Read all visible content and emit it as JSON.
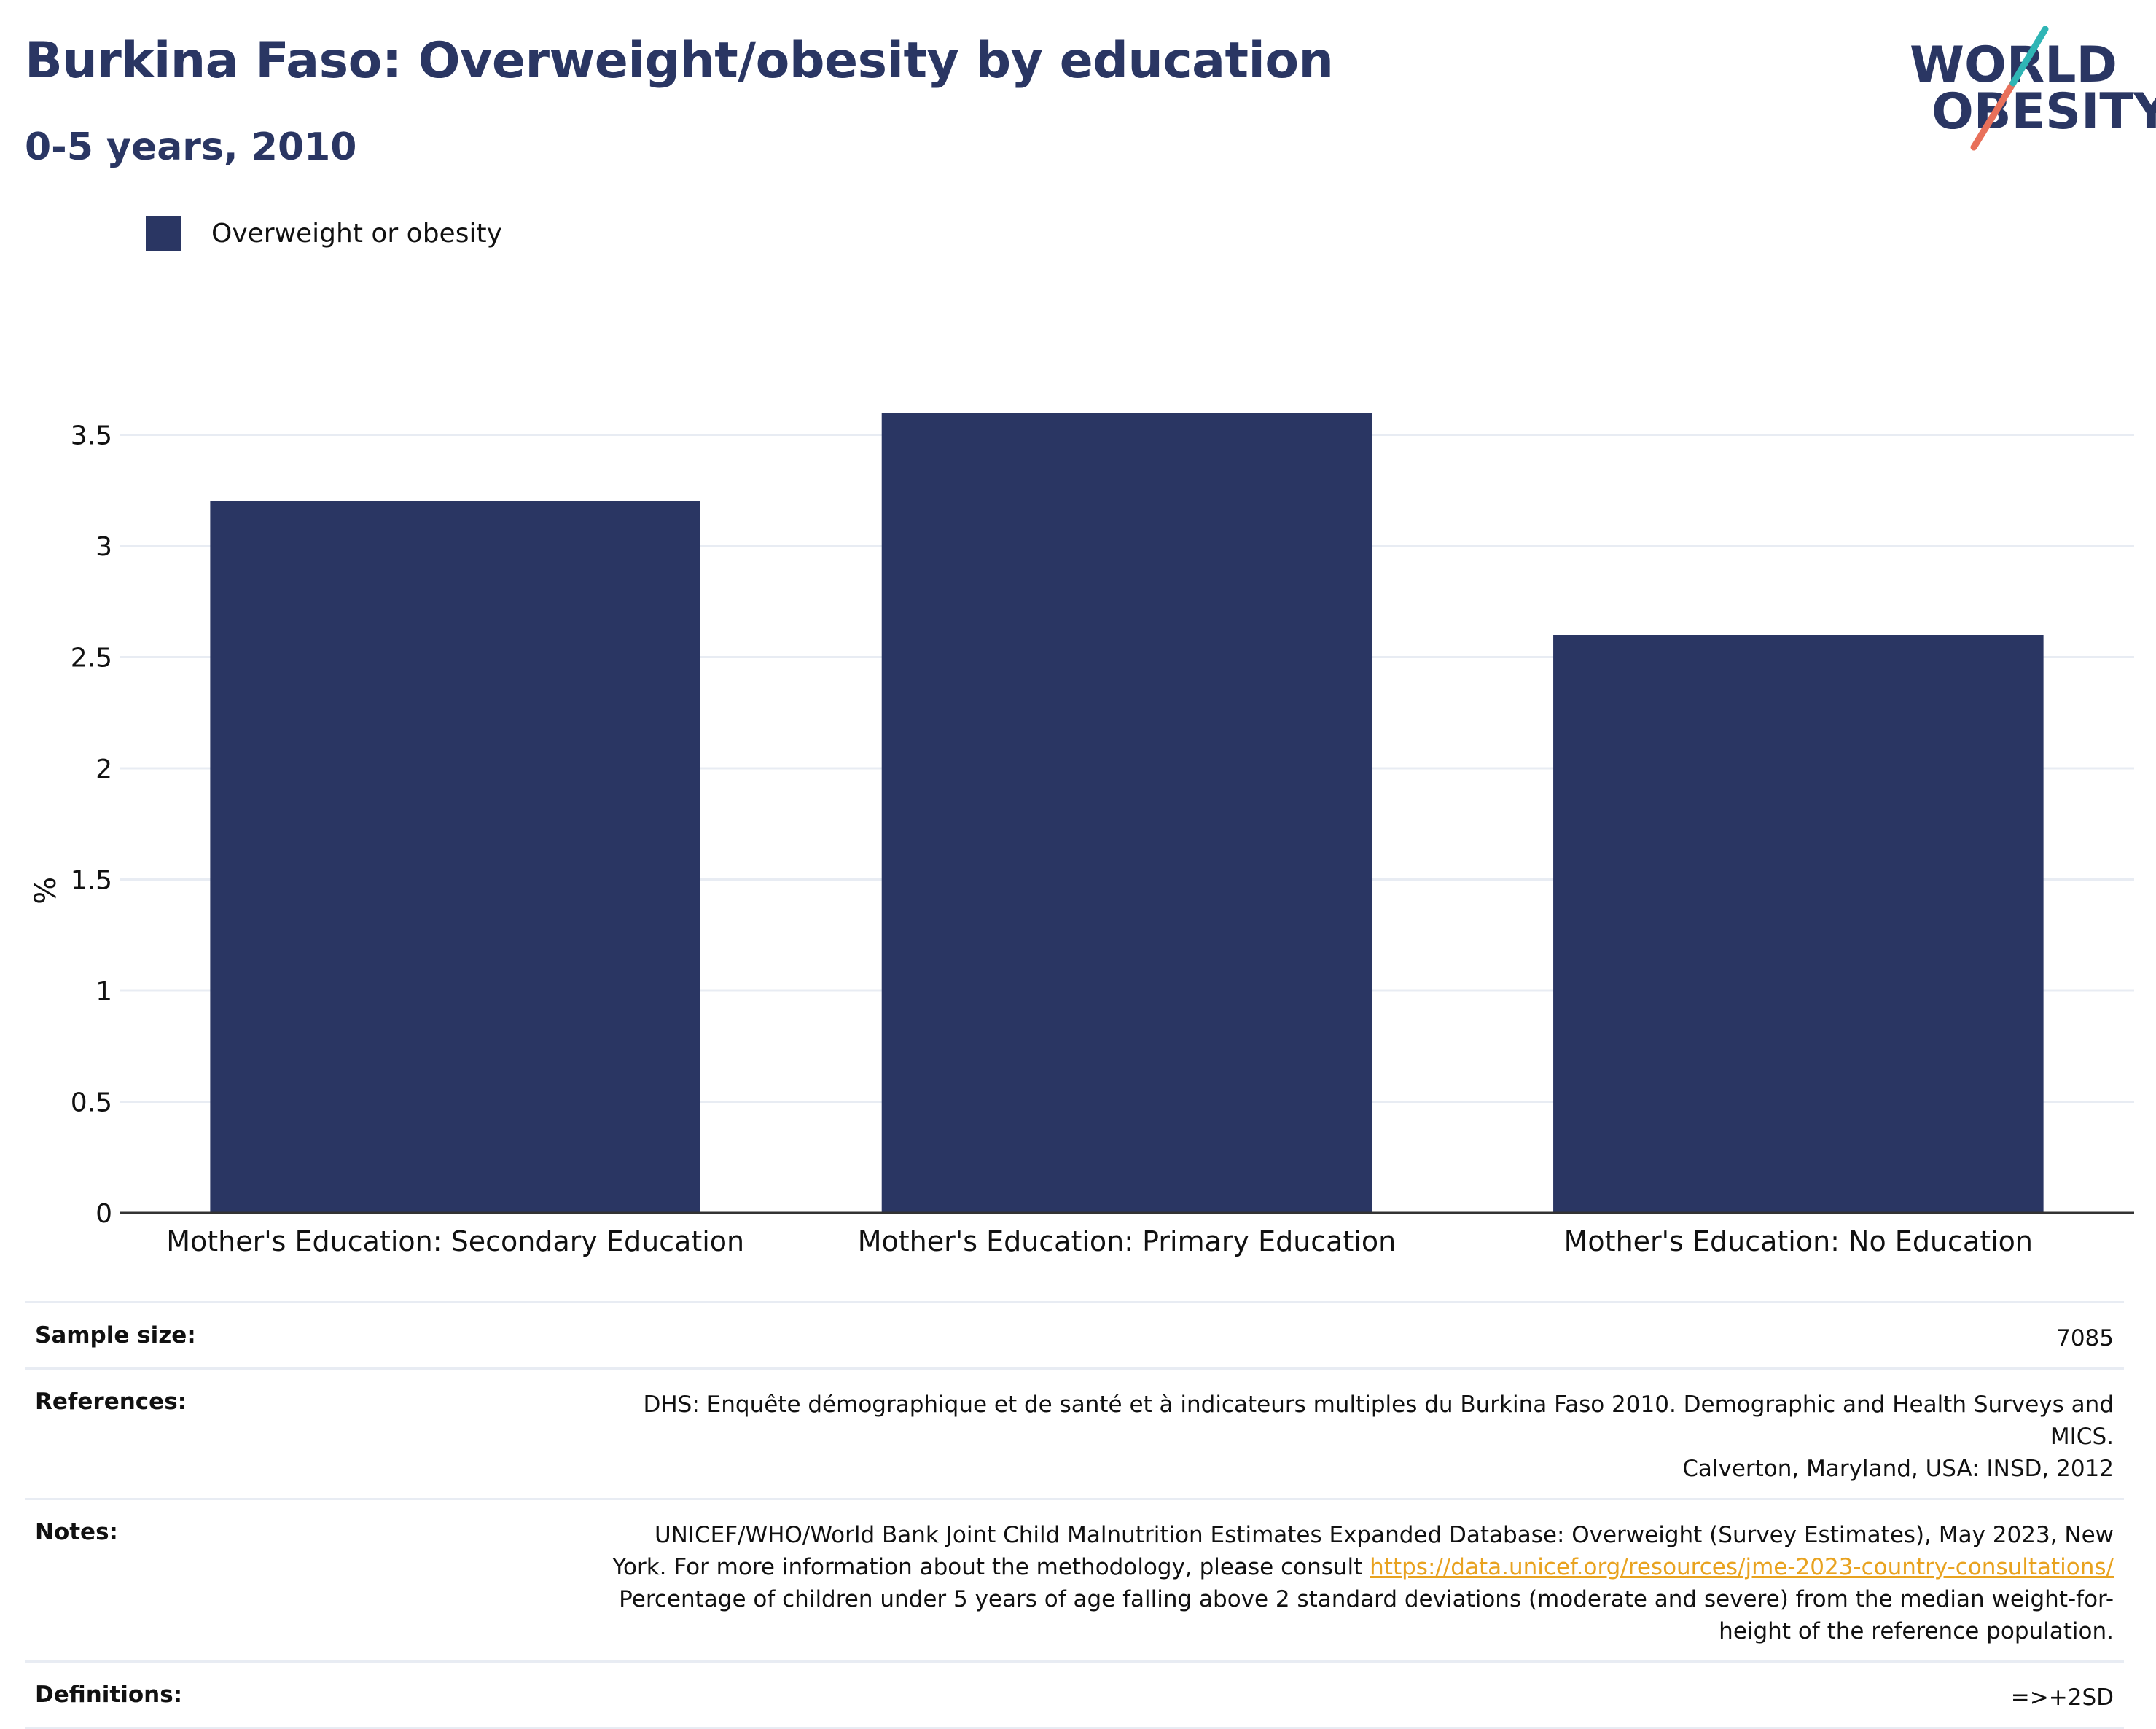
{
  "header": {
    "title": "Burkina Faso: Overweight/obesity by education",
    "subtitle": "0-5 years, 2010"
  },
  "logo": {
    "line1": "WORLD",
    "line2": "OBESITY"
  },
  "colors": {
    "bar": "#2a3663",
    "title": "#2a3663",
    "grid": "#e8ecf3",
    "link": "#e8a21f",
    "logo_teal": "#2fb5b5",
    "logo_coral": "#e8705a"
  },
  "chart_data": {
    "type": "bar",
    "categories": [
      "Mother's Education: Secondary Education",
      "Mother's Education: Primary Education",
      "Mother's Education: No Education"
    ],
    "series": [
      {
        "name": "Overweight or obesity",
        "values": [
          3.2,
          3.6,
          2.6
        ]
      }
    ],
    "ylabel": "%",
    "ylim": [
      0,
      3.8
    ],
    "yticks": [
      0,
      0.5,
      1,
      1.5,
      2,
      2.5,
      3,
      3.5
    ],
    "ytick_labels": [
      "0",
      "0.5",
      "1",
      "1.5",
      "2",
      "2.5",
      "3",
      "3.5"
    ],
    "grid": true,
    "legend_position": "top-left"
  },
  "info": {
    "sample_size_label": "Sample size:",
    "sample_size": "7085",
    "references_label": "References:",
    "references_line1": "DHS: Enquête démographique et de santé et à indicateurs multiples du Burkina Faso 2010. Demographic and Health Surveys and MICS.",
    "references_line2": "Calverton, Maryland, USA: INSD, 2012",
    "notes_label": "Notes:",
    "notes_line1": "UNICEF/WHO/World Bank Joint Child Malnutrition Estimates Expanded Database: Overweight (Survey Estimates), May 2023, New",
    "notes_line2_prefix": "York. For more information about the methodology, please consult ",
    "notes_link": "https://data.unicef.org/resources/jme-2023-country-consultations/",
    "notes_line3": "Percentage of children under 5 years of age falling above 2 standard deviations (moderate and severe) from the median weight-for-",
    "notes_line4": "height of the reference population.",
    "definitions_label": "Definitions:",
    "definitions": "=>+2SD"
  }
}
